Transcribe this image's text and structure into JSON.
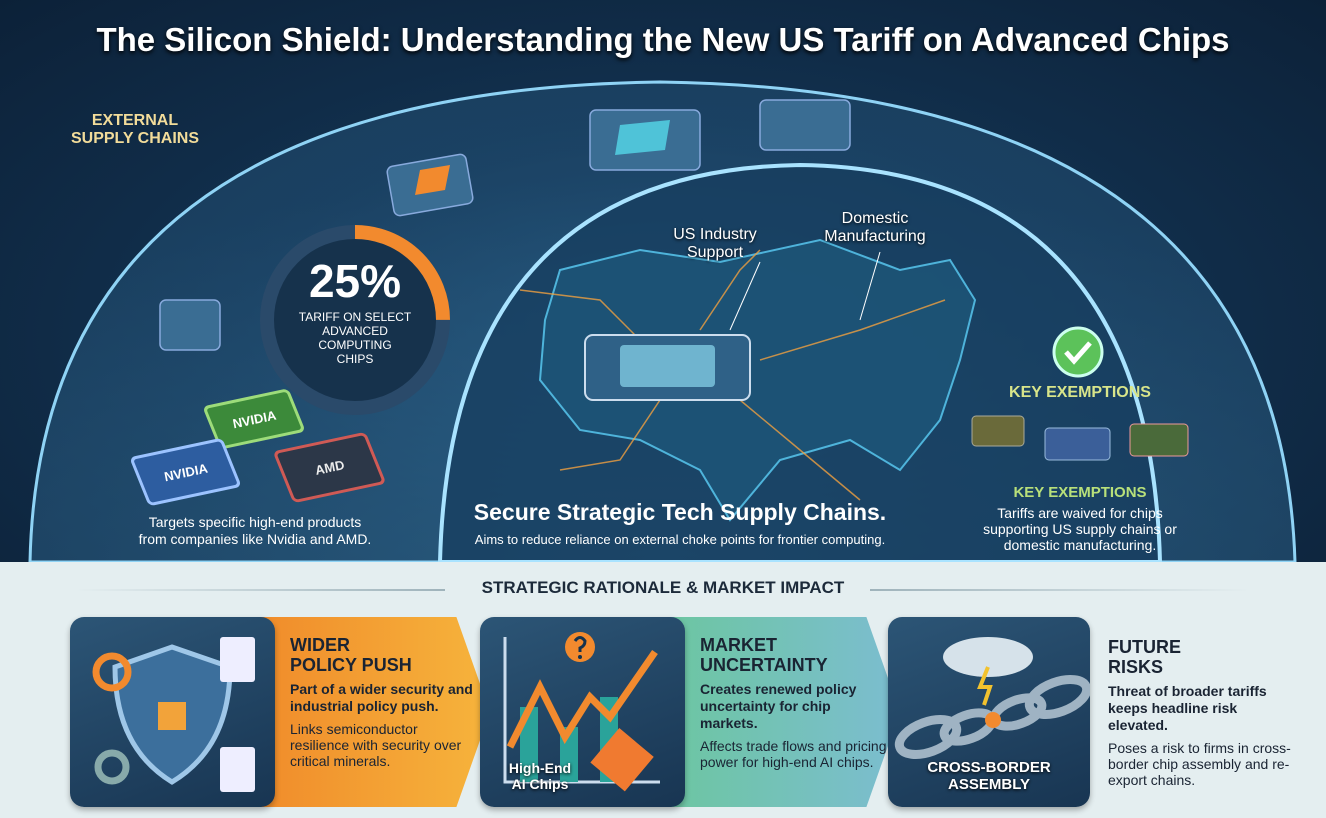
{
  "title": "The Silicon Shield: Understanding the New US Tariff on Advanced Chips",
  "hero": {
    "external_label": "EXTERNAL\nSUPPLY CHAINS",
    "tariff_percent": "25%",
    "tariff_value": 25,
    "tariff_caption": "TARIFF ON SELECT\nADVANCED\nCOMPUTING\nCHIPS",
    "chip_brands": [
      "NVIDIA",
      "NVIDIA",
      "AMD"
    ],
    "targets_text": "Targets specific high-end products\nfrom companies like Nvidia and AMD.",
    "us_industry_label": "US Industry\nSupport",
    "domestic_label": "Domestic\nManufacturing",
    "center_heading": "Secure Strategic Tech Supply Chains.",
    "center_sub": "Aims to reduce reliance on external choke points for frontier computing.",
    "exemptions_badge": "KEY EXEMPTIONS",
    "exemptions_heading": "KEY EXEMPTIONS",
    "exemptions_text": "Tariffs are waived for chips\nsupporting US supply chains or\ndomestic manufacturing."
  },
  "colors": {
    "accent_orange": "#f28a2e",
    "accent_yellow": "#f2dc9a",
    "check_green": "#5cc25a",
    "exemptions_green": "#b8e07a"
  },
  "section_heading": "STRATEGIC RATIONALE & MARKET IMPACT",
  "cards": [
    {
      "heading": "WIDER\nPOLICY PUSH",
      "bold": "Part of a wider security and industrial policy push.",
      "body": "Links semiconductor resilience with security over critical minerals.",
      "icon": "shield-chip-icon"
    },
    {
      "heading": "MARKET\nUNCERTAINTY",
      "bold": "Creates renewed policy uncertainty for chip markets.",
      "body": "Affects trade flows and pricing power for high-end AI chips.",
      "image_caption": "High-End\nAI Chips",
      "icon": "volatile-chart-icon"
    },
    {
      "heading": "FUTURE\nRISKS",
      "bold": "Threat of broader tariffs keeps headline risk elevated.",
      "body": "Poses a risk to firms in cross-border chip assembly and re-export chains.",
      "image_caption": "CROSS-BORDER\nASSEMBLY",
      "icon": "broken-chain-icon"
    }
  ]
}
